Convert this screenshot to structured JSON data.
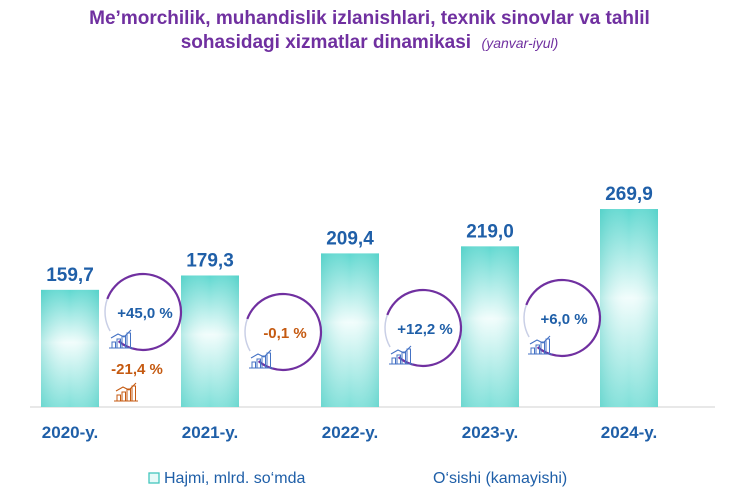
{
  "chart_data": {
    "type": "bar",
    "title": "Me’morchilik, muhandislik izlanishlari, texnik sinovlar va tahlil",
    "title_line2": "sohasidagi xizmatlar dinamikasi",
    "subtitle": "(yanvar-iyul)",
    "categories": [
      "2020-y.",
      "2021-y.",
      "2022-y.",
      "2023-y.",
      "2024-y."
    ],
    "values": [
      159.7,
      179.3,
      209.4,
      219.0,
      269.9
    ],
    "value_labels": [
      "159,7",
      "179,3",
      "209,4",
      "219,0",
      "269,9"
    ],
    "growth": [
      -21.4,
      45.0,
      -0.1,
      12.2,
      6.0
    ],
    "growth_labels": [
      "-21,4 %",
      "+45,0 %",
      "-0,1 %",
      "+12,2 %",
      "+6,0 %"
    ],
    "ylim": [
      0,
      300
    ],
    "grid": false,
    "legend": {
      "placement": "bottom",
      "items": [
        "Hajmi, mlrd. so‘mda",
        "O‘sishi (kamayishi)"
      ]
    },
    "colors": {
      "bar_top": "#5fd8d0",
      "bar_mid": "#f2fdfc",
      "growth_negative": "#c55a11",
      "growth_positive": "#1f5fa8",
      "ring": "#7030a0",
      "ring_alt": "#4472c4",
      "text": "#1f5fa8",
      "title": "#7030a0"
    }
  }
}
